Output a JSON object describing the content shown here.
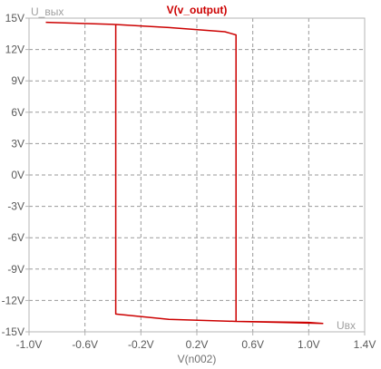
{
  "colors": {
    "trace": "#cc0000",
    "grid": "#9a9a9a",
    "frame": "#b4b4b4",
    "text": "#5a5a5a",
    "background": "#ffffff"
  },
  "chart_data": {
    "type": "line",
    "title": "V(v_output)",
    "xlabel": "V(n002)",
    "ylabel": "U_вых",
    "x_annotation": "Uвх",
    "xlim": [
      -1.0,
      1.4
    ],
    "ylim": [
      -15,
      15
    ],
    "x_ticks": [
      "-1.0V",
      "-0.6V",
      "-0.2V",
      "0.2V",
      "0.6V",
      "1.0V",
      "1.4V"
    ],
    "y_ticks": [
      "15V",
      "12V",
      "9V",
      "6V",
      "3V",
      "0V",
      "-3V",
      "-6V",
      "-9V",
      "-12V",
      "-15V"
    ],
    "grid": true,
    "series": [
      {
        "points": [
          [
            -0.88,
            14.6
          ],
          [
            -0.4,
            14.4
          ],
          [
            0.0,
            14.1
          ],
          [
            0.4,
            13.7
          ],
          [
            0.48,
            13.4
          ],
          [
            0.48,
            -14.0
          ],
          [
            0.7,
            -14.05
          ],
          [
            1.0,
            -14.1
          ],
          [
            1.1,
            -14.2
          ],
          [
            0.8,
            -14.1
          ],
          [
            0.48,
            -14.0
          ],
          [
            0.0,
            -13.8
          ],
          [
            -0.38,
            -13.3
          ],
          [
            -0.38,
            14.1
          ],
          [
            -0.38,
            5.4
          ],
          [
            -0.38,
            14.4
          ]
        ]
      }
    ]
  }
}
